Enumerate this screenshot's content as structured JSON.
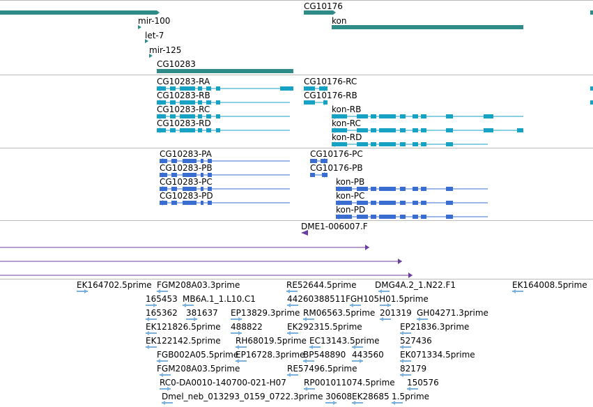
{
  "colors": {
    "gene": "#2e8b88",
    "transcript": "#17a2c4",
    "protein": "#3a6dd0",
    "alignment": "#6a3fa0",
    "est": "#7ab0dd",
    "divider": "#bbbbbb"
  },
  "genes": [
    "mir-100",
    "let-7",
    "mir-125",
    "CG10283",
    "CG10176",
    "kon"
  ],
  "transcripts": [
    "CG10283-RA",
    "CG10283-RB",
    "CG10283-RC",
    "CG10283-RD",
    "CG10176-RC",
    "CG10176-RB",
    "kon-RB",
    "kon-RC",
    "kon-RD"
  ],
  "proteins": [
    "CG10283-PA",
    "CG10283-PB",
    "CG10283-PC",
    "CG10283-PD",
    "CG10176-PC",
    "CG10176-PB",
    "kon-PB",
    "kon-PC",
    "kon-PD"
  ],
  "alignments": [
    "DME1-006007.F"
  ],
  "ests": [
    "EK164702.5prime",
    "FGM208A03.3prime",
    "RE52644.5prime",
    "DMG4A.2_1.N22.F1",
    "EK164008.5prime",
    "165453",
    "MB6A.1_1.L10.C1",
    "44260388511FGH105H01.5prime",
    "165362",
    "381637",
    "EP13829.3prime",
    "RM06563.5prime",
    "201319",
    "GH04271.3prime",
    "EK121826.5prime",
    "488822",
    "EK292315.5prime",
    "EP21836.3prime",
    "EK122142.5prime",
    "RH68019.5prime",
    "EC13143.5prime",
    "527436",
    "FGB002A05.5prime",
    "EP16728.3prime",
    "BP548890",
    "443560",
    "EK071334.5prime",
    "FGM208A03.5prime",
    "RE57496.5prime",
    "82179",
    "RC0-DA0010-140700-021-H07",
    "RP001011074.5prime",
    "150576",
    "Dmel_neb_013293_0159_0722.3prime",
    "30608",
    "EK28685",
    "1.5prime"
  ]
}
